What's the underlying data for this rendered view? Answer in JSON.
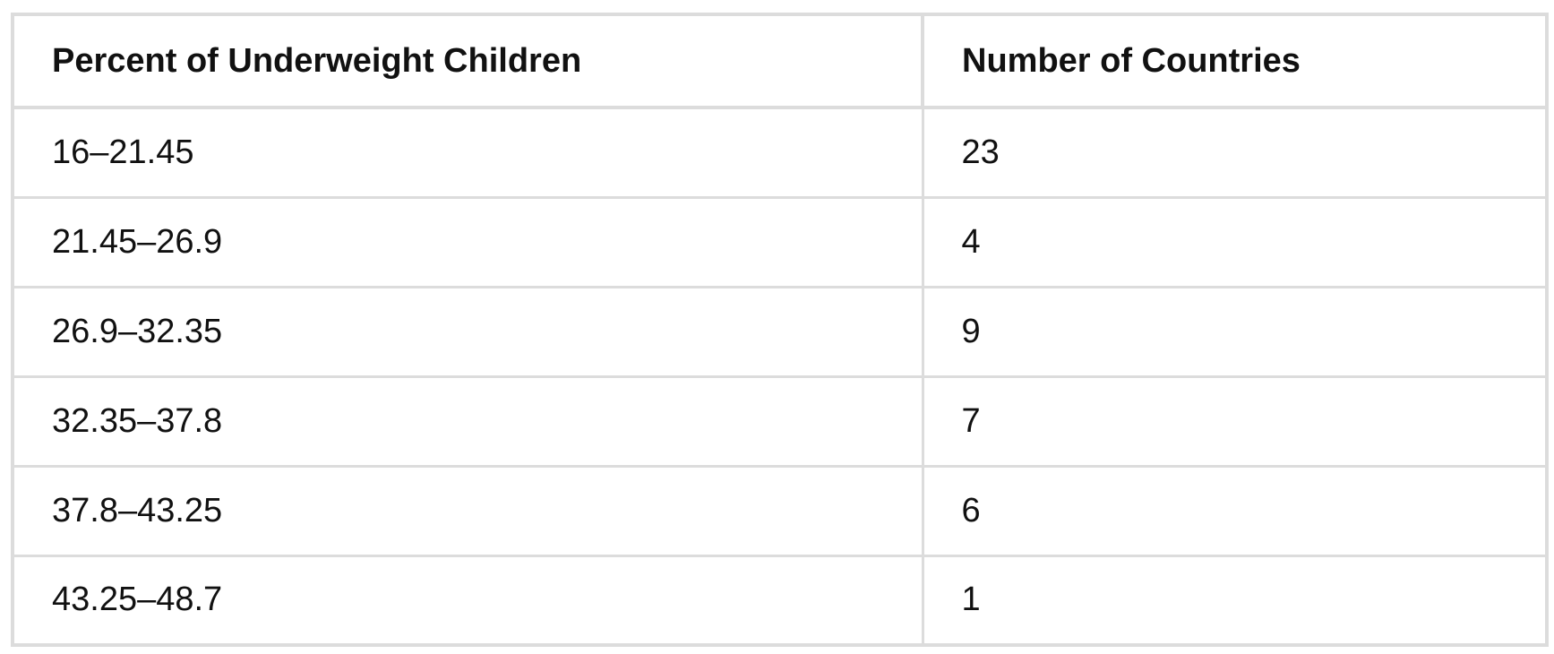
{
  "table": {
    "headers": [
      "Percent of Underweight Children",
      "Number of Countries"
    ],
    "rows": [
      [
        "16–21.45",
        "23"
      ],
      [
        "21.45–26.9",
        "4"
      ],
      [
        "26.9–32.35",
        "9"
      ],
      [
        "32.35–37.8",
        "7"
      ],
      [
        "37.8–43.25",
        "6"
      ],
      [
        "43.25–48.7",
        "1"
      ]
    ]
  },
  "colors": {
    "border": "#dcdcdc",
    "text": "#111111",
    "background": "#ffffff"
  }
}
